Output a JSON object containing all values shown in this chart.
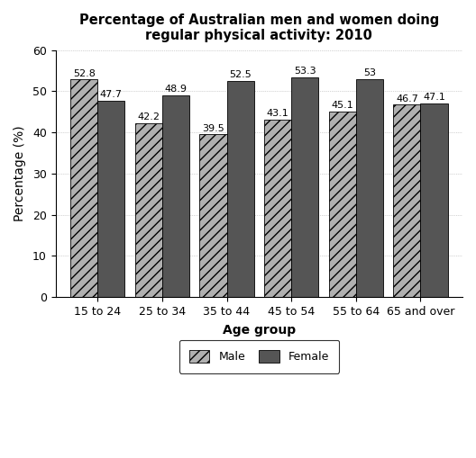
{
  "title": "Percentage of Australian men and women doing\nregular physical activity: 2010",
  "xlabel": "Age group",
  "ylabel": "Percentage (%)",
  "categories": [
    "15 to 24",
    "25 to 34",
    "35 to 44",
    "45 to 54",
    "55 to 64",
    "65 and over"
  ],
  "male_values": [
    52.8,
    42.2,
    39.5,
    43.1,
    45.1,
    46.7
  ],
  "female_values": [
    47.7,
    48.9,
    52.5,
    53.3,
    53.0,
    47.1
  ],
  "ylim": [
    0,
    60
  ],
  "yticks": [
    0,
    10,
    20,
    30,
    40,
    50,
    60
  ],
  "male_color": "#b0b0b0",
  "female_color": "#555555",
  "male_hatch": "///",
  "female_hatch": "",
  "bar_width": 0.42,
  "legend_male": "Male",
  "legend_female": "Female",
  "title_fontsize": 10.5,
  "axis_label_fontsize": 10,
  "tick_fontsize": 9,
  "value_fontsize": 8,
  "background_color": "#ffffff",
  "grid_color": "#aaaaaa"
}
